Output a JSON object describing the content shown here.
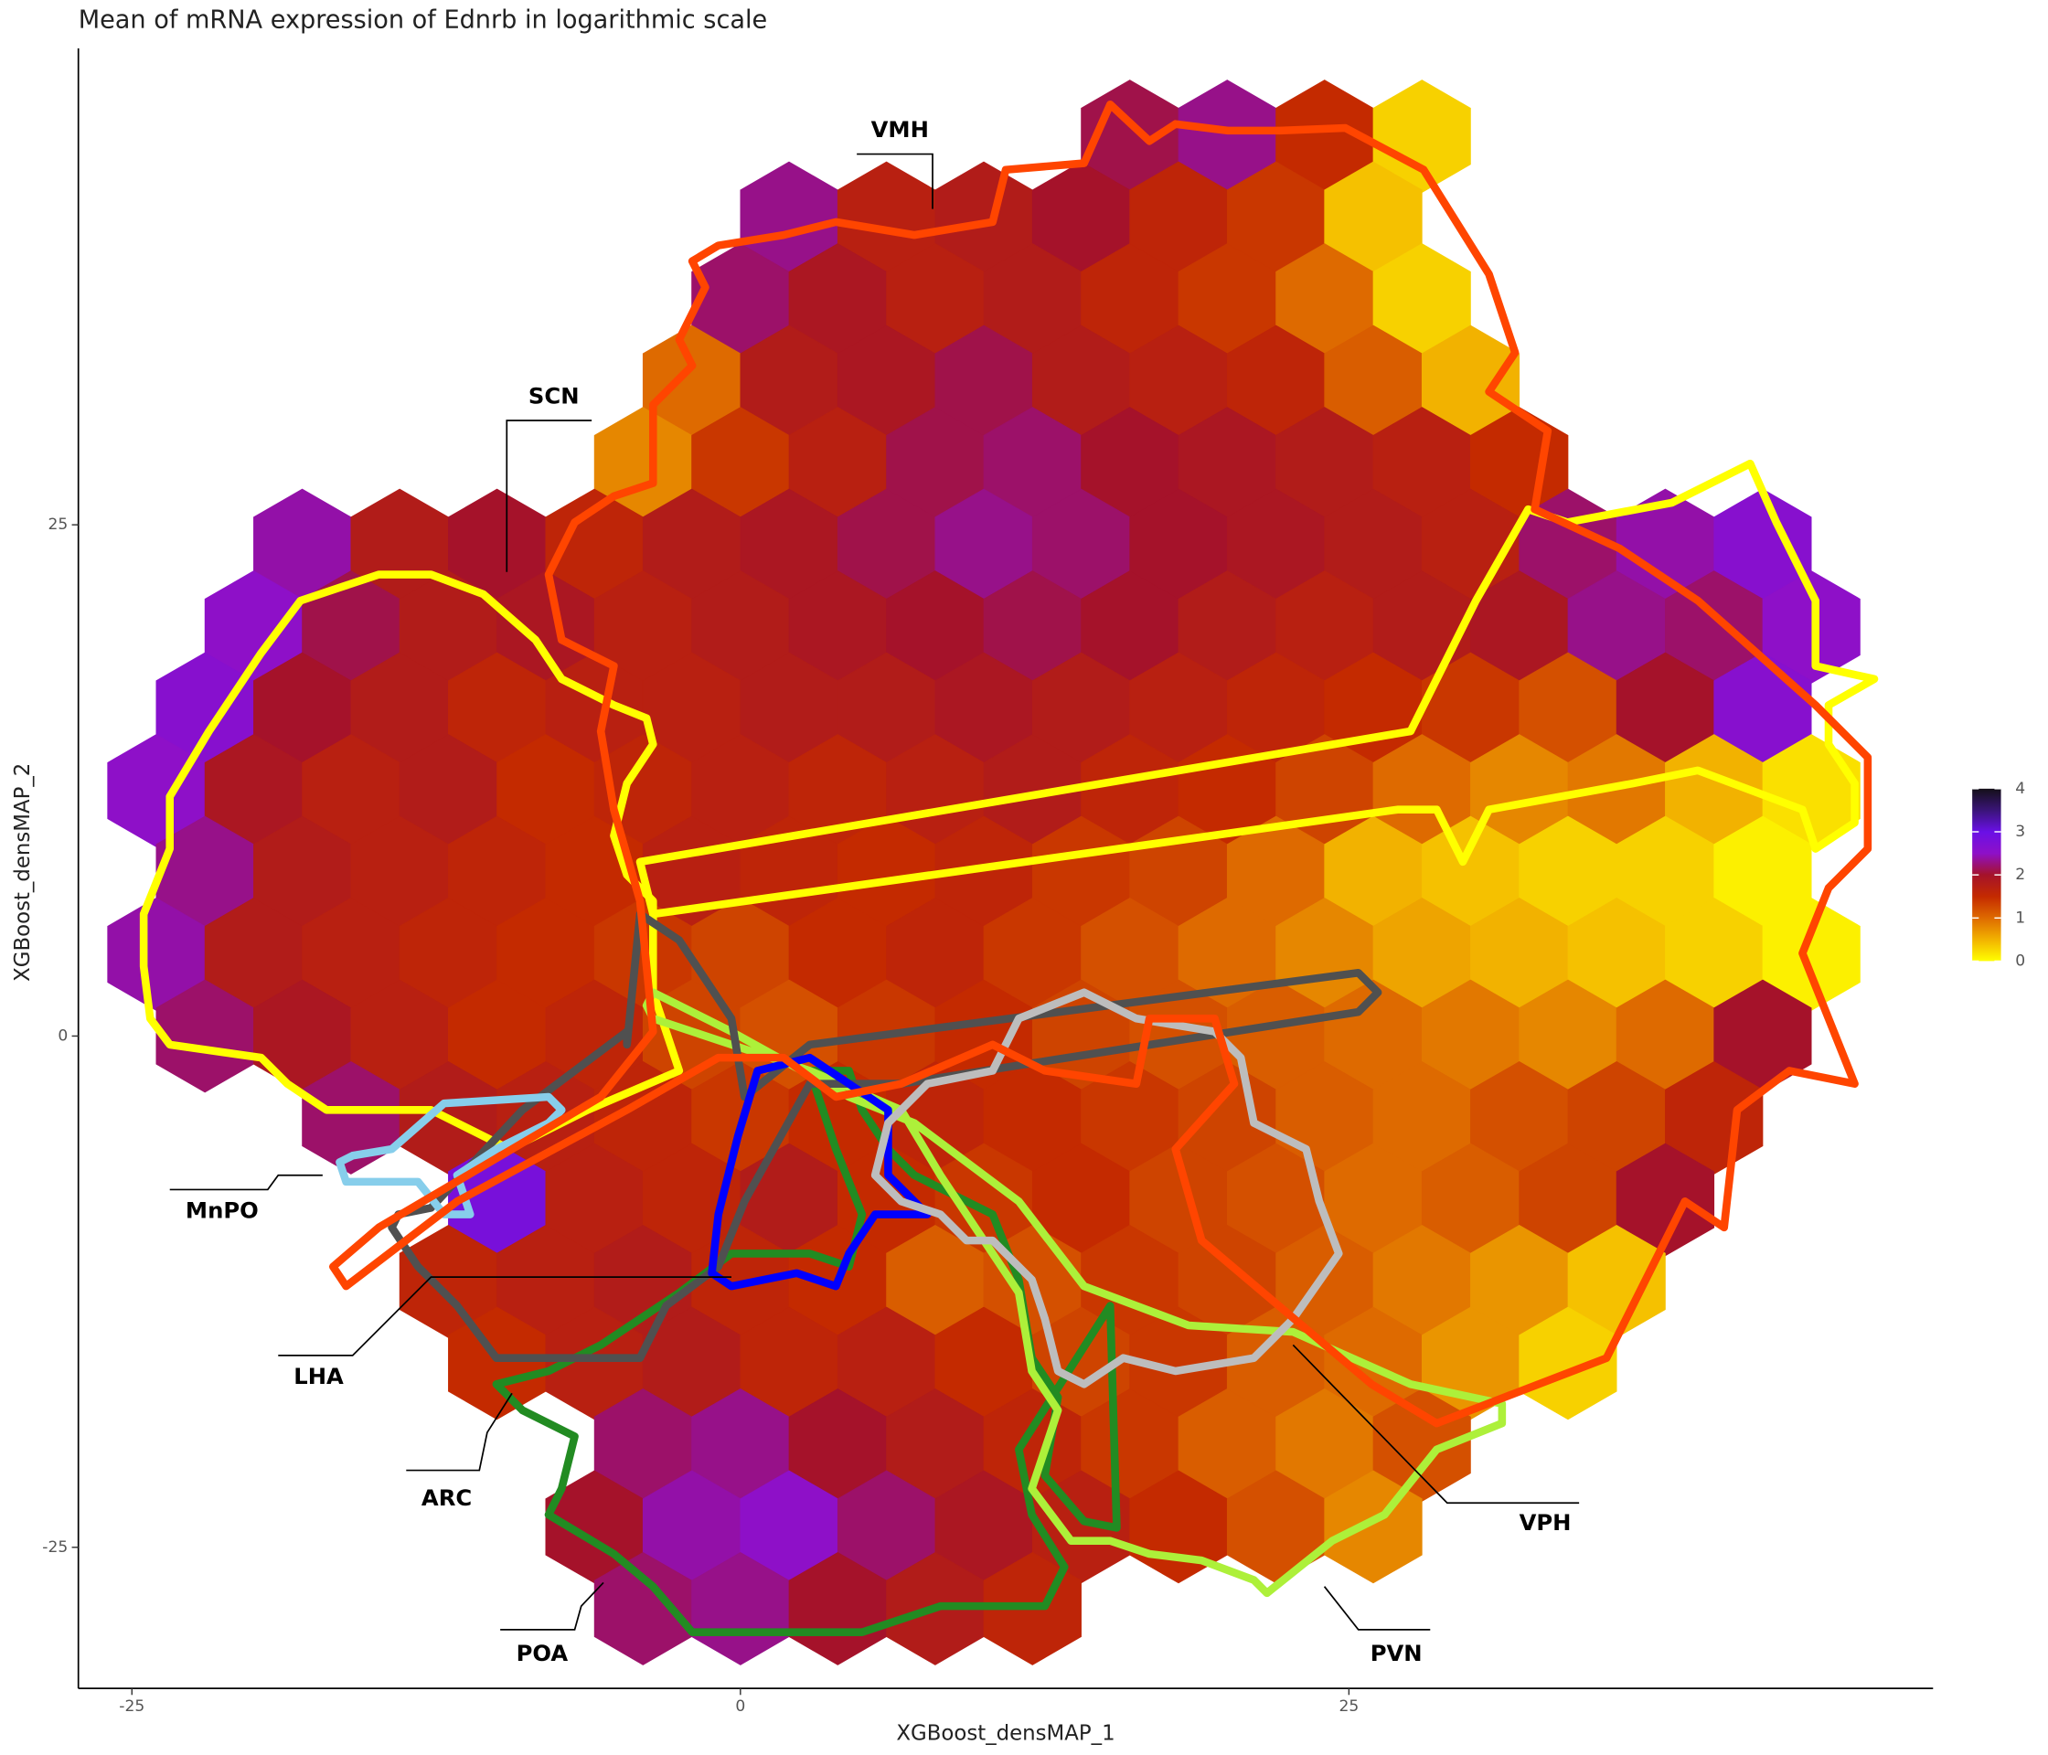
{
  "chart_data": {
    "type": "hexbin",
    "title": "Mean of mRNA expression of Ednrb in logarithmic scale",
    "x_label": "XGBoost_densMAP_1",
    "y_label": "XGBoost_densMAP_2",
    "xlim": [
      -27.2,
      49
    ],
    "ylim": [
      -31.9,
      48.3
    ],
    "xticks": [
      -25,
      0,
      25
    ],
    "yticks": [
      -25,
      0,
      25
    ],
    "colorbar": {
      "lim": [
        0,
        4
      ],
      "ticks": [
        0,
        1,
        2,
        3,
        4
      ],
      "colors": [
        "#ffff00",
        "#f2b200",
        "#de6a00",
        "#c42a00",
        "#a5122a",
        "#8e10c8",
        "#6a10e6",
        "#3a1478",
        "#141018"
      ]
    },
    "annotations": [
      "VMH",
      "SCN",
      "MnPO",
      "LHA",
      "ARC",
      "POA",
      "PVN",
      "VPH"
    ],
    "rows": [
      {
        "y": 44,
        "x": [
          16,
          20,
          24,
          28
        ],
        "values": [
          2.1,
          2.3,
          1.5,
          0.3
        ]
      },
      {
        "y": 40,
        "x": [
          2,
          6,
          10,
          14,
          18,
          22,
          26
        ],
        "values": [
          2.3,
          1.7,
          1.8,
          2.0,
          1.6,
          1.4,
          0.4
        ]
      },
      {
        "y": 36,
        "x": [
          0,
          4,
          8,
          12,
          16,
          20,
          24,
          28
        ],
        "values": [
          2.2,
          1.9,
          1.7,
          1.8,
          1.6,
          1.4,
          1.0,
          0.3
        ]
      },
      {
        "y": 32,
        "x": [
          -2,
          2,
          6,
          10,
          14,
          18,
          22,
          26,
          30
        ],
        "values": [
          1.0,
          1.8,
          1.9,
          2.1,
          1.8,
          1.7,
          1.6,
          1.1,
          0.5
        ]
      },
      {
        "y": 28,
        "x": [
          -4,
          0,
          4,
          8,
          12,
          16,
          20,
          24,
          28,
          32
        ],
        "values": [
          0.8,
          1.4,
          1.7,
          2.1,
          2.2,
          2.0,
          1.9,
          1.8,
          1.7,
          1.5
        ]
      },
      {
        "y": 24,
        "x": [
          -18,
          -14,
          -10,
          -6,
          -2,
          2,
          6,
          10,
          14,
          18,
          22,
          26,
          30,
          34,
          38,
          42
        ],
        "values": [
          2.4,
          1.8,
          2.0,
          1.6,
          1.8,
          1.9,
          2.1,
          2.3,
          2.2,
          2.0,
          1.9,
          1.8,
          1.7,
          2.2,
          2.4,
          2.6
        ]
      },
      {
        "y": 20,
        "x": [
          -20,
          -16,
          -12,
          -8,
          -4,
          0,
          4,
          8,
          12,
          16,
          20,
          24,
          28,
          32,
          36,
          40,
          44
        ],
        "values": [
          2.5,
          2.1,
          1.8,
          1.9,
          1.7,
          1.8,
          1.9,
          2.0,
          2.1,
          2.0,
          1.8,
          1.7,
          1.8,
          1.9,
          2.3,
          2.2,
          2.5
        ]
      },
      {
        "y": 16,
        "x": [
          -22,
          -18,
          -14,
          -10,
          -6,
          -2,
          2,
          6,
          10,
          14,
          18,
          22,
          26,
          30,
          34,
          38,
          42
        ],
        "values": [
          2.6,
          2.0,
          1.8,
          1.6,
          1.7,
          1.7,
          1.8,
          1.8,
          1.9,
          1.8,
          1.7,
          1.6,
          1.5,
          1.4,
          1.2,
          2.0,
          2.6
        ]
      },
      {
        "y": 12,
        "x": [
          -24,
          -20,
          -16,
          -12,
          -8,
          -4,
          0,
          4,
          8,
          12,
          16,
          20,
          24,
          28,
          32,
          36,
          40,
          44
        ],
        "values": [
          2.5,
          1.9,
          1.7,
          1.8,
          1.5,
          1.6,
          1.7,
          1.6,
          1.7,
          1.8,
          1.6,
          1.5,
          1.3,
          1.0,
          0.8,
          0.9,
          0.5,
          0.2
        ]
      },
      {
        "y": 8,
        "x": [
          -22,
          -18,
          -14,
          -10,
          -6,
          -2,
          2,
          6,
          10,
          14,
          18,
          22,
          26,
          30,
          34,
          38,
          42
        ],
        "values": [
          2.3,
          1.8,
          1.7,
          1.6,
          1.5,
          1.7,
          1.6,
          1.5,
          1.6,
          1.4,
          1.3,
          1.0,
          0.5,
          0.4,
          0.3,
          0.3,
          0.1
        ]
      },
      {
        "y": 4,
        "x": [
          -24,
          -20,
          -16,
          -12,
          -8,
          -4,
          0,
          4,
          8,
          12,
          16,
          20,
          24,
          28,
          32,
          36,
          40,
          44
        ],
        "values": [
          2.4,
          1.8,
          1.7,
          1.6,
          1.5,
          1.4,
          1.3,
          1.5,
          1.6,
          1.4,
          1.2,
          1.0,
          0.8,
          0.6,
          0.5,
          0.4,
          0.3,
          0.1
        ]
      },
      {
        "y": 0,
        "x": [
          -22,
          -18,
          -14,
          -10,
          -6,
          -2,
          2,
          6,
          10,
          14,
          18,
          22,
          26,
          30,
          34,
          38,
          42
        ],
        "values": [
          2.2,
          1.9,
          1.7,
          1.5,
          1.6,
          1.3,
          1.2,
          1.4,
          1.5,
          1.3,
          1.2,
          1.1,
          1.0,
          0.9,
          0.8,
          1.0,
          2.0
        ]
      },
      {
        "y": -4,
        "x": [
          -16,
          -12,
          -8,
          -4,
          0,
          4,
          8,
          12,
          16,
          20,
          24,
          28,
          32,
          36,
          40
        ],
        "values": [
          2.2,
          1.8,
          1.7,
          1.6,
          1.4,
          1.5,
          1.6,
          1.5,
          1.4,
          1.3,
          1.1,
          1.0,
          1.2,
          1.3,
          1.6
        ]
      },
      {
        "y": -8,
        "x": [
          -10,
          -6,
          -2,
          2,
          6,
          10,
          14,
          18,
          22,
          26,
          30,
          34,
          38
        ],
        "values": [
          2.8,
          1.7,
          1.6,
          1.8,
          1.5,
          1.4,
          1.5,
          1.3,
          1.2,
          1.0,
          1.1,
          1.3,
          2.0
        ]
      },
      {
        "y": -12,
        "x": [
          -12,
          -8,
          -4,
          0,
          4,
          8,
          12,
          16,
          20,
          24,
          28,
          32,
          36
        ],
        "values": [
          1.6,
          1.7,
          1.8,
          1.6,
          1.5,
          1.1,
          1.2,
          1.4,
          1.3,
          1.1,
          0.9,
          0.7,
          0.4
        ]
      },
      {
        "y": -16,
        "x": [
          -10,
          -6,
          -2,
          2,
          6,
          10,
          14,
          18,
          22,
          26,
          30,
          34
        ],
        "values": [
          1.5,
          1.7,
          1.8,
          1.6,
          1.7,
          1.5,
          1.3,
          1.4,
          1.1,
          1.0,
          0.7,
          0.3
        ]
      },
      {
        "y": -20,
        "x": [
          -4,
          0,
          4,
          8,
          12,
          16,
          20,
          24,
          28
        ],
        "values": [
          2.2,
          2.3,
          2.0,
          1.8,
          1.6,
          1.4,
          1.1,
          0.9,
          1.2
        ]
      },
      {
        "y": -24,
        "x": [
          -6,
          -2,
          2,
          6,
          10,
          14,
          18,
          22,
          26
        ],
        "values": [
          2.0,
          2.4,
          2.5,
          2.2,
          1.9,
          1.7,
          1.5,
          1.2,
          0.8
        ]
      },
      {
        "y": -28,
        "x": [
          -4,
          0,
          4,
          8,
          12
        ],
        "values": [
          2.2,
          2.3,
          2.0,
          1.8,
          1.6
        ]
      }
    ]
  }
}
